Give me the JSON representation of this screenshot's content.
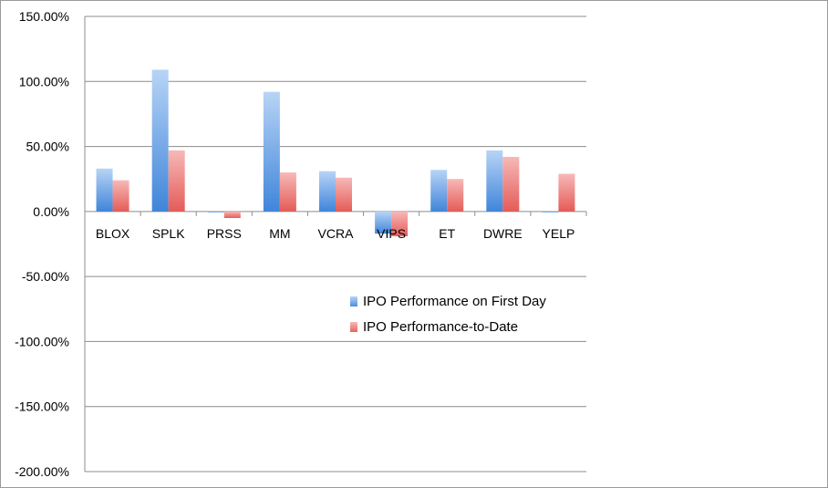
{
  "chart_data": {
    "type": "bar",
    "categories": [
      "BLOX",
      "SPLK",
      "PRSS",
      "MM",
      "VCRA",
      "VIPS",
      "ET",
      "DWRE",
      "YELP"
    ],
    "series": [
      {
        "name": "IPO Performance on First Day",
        "color": "#4a8fdd",
        "values": [
          0.33,
          1.09,
          -0.005,
          0.92,
          0.31,
          -0.17,
          0.32,
          0.47,
          -0.005
        ]
      },
      {
        "name": "IPO Performance-to-Date",
        "color": "#e86461",
        "values": [
          0.24,
          0.47,
          -0.05,
          0.3,
          0.26,
          -0.19,
          0.25,
          0.42,
          0.29
        ]
      }
    ],
    "yticks": [
      "150.00%",
      "100.00%",
      "50.00%",
      "0.00%",
      "-50.00%",
      "-100.00%",
      "-150.00%",
      "-200.00%"
    ],
    "ylim": [
      -2.0,
      1.5
    ],
    "grid": true,
    "legend_position": "right",
    "title": "",
    "xlabel": "",
    "ylabel": ""
  }
}
